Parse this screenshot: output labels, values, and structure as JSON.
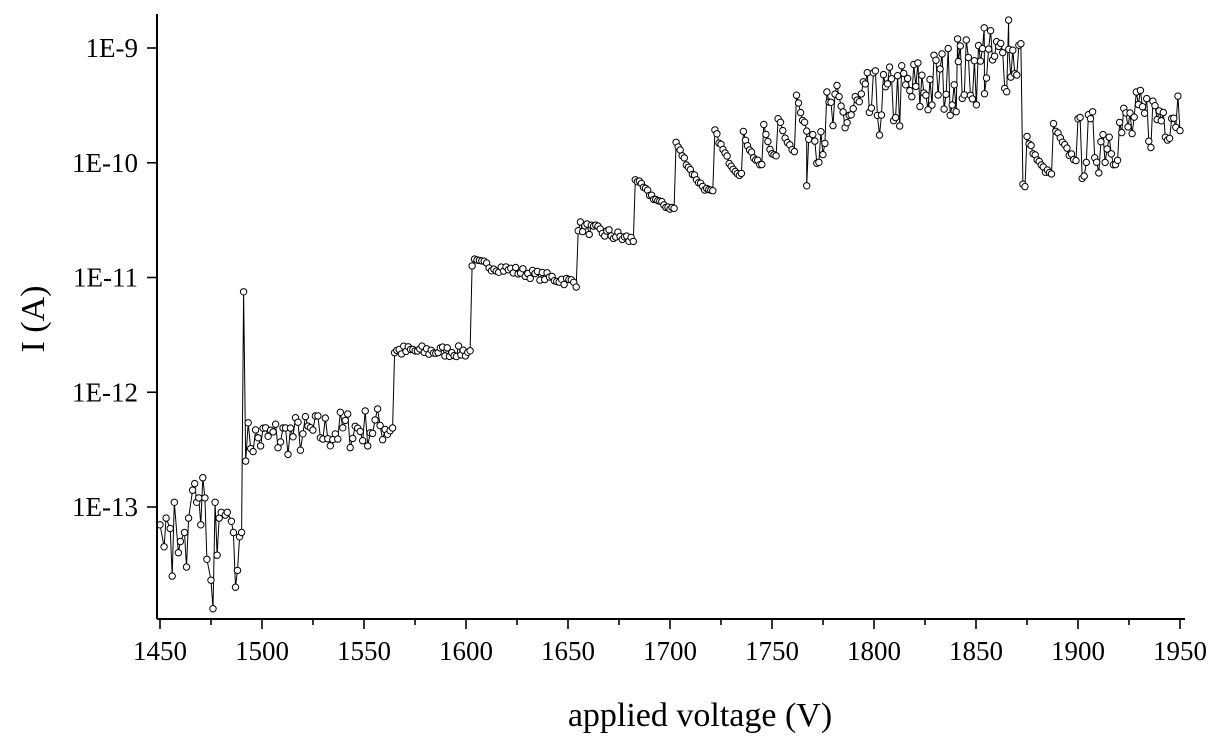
{
  "chart_data": {
    "type": "scatter",
    "title": "",
    "xlabel": "applied voltage (V)",
    "ylabel": "I (A)",
    "xlim": [
      1450,
      1950
    ],
    "ylim": [
      5e-14,
      2e-09
    ],
    "yscale": "log",
    "grid": false,
    "legend": "none",
    "marker": "open-circle",
    "connected": true,
    "x_ticks": [
      1450,
      1500,
      1550,
      1600,
      1650,
      1700,
      1750,
      1800,
      1850,
      1900,
      1950
    ],
    "x_tick_labels": [
      "1450",
      "1500",
      "1550",
      "1600",
      "1650",
      "1700",
      "1750",
      "1800",
      "1850",
      "1900",
      "1950"
    ],
    "y_ticks": [
      1e-13,
      1e-12,
      1e-11,
      1e-10,
      1e-09
    ],
    "y_tick_labels": [
      "1E-13",
      "1E-12",
      "1E-11",
      "1E-10",
      "1E-9"
    ],
    "segments": [
      {
        "note": "noisy",
        "x_start": 1450,
        "x_end": 1490,
        "points": [
          [
            1450,
            7e-14
          ],
          [
            1452,
            4.5e-14
          ],
          [
            1453,
            8e-14
          ],
          [
            1455,
            6.5e-14
          ],
          [
            1456,
            2.5e-14
          ],
          [
            1457,
            1.1e-13
          ],
          [
            1459,
            4e-14
          ],
          [
            1460,
            5e-14
          ],
          [
            1462,
            6e-14
          ],
          [
            1463,
            3e-14
          ],
          [
            1464,
            8e-14
          ],
          [
            1466,
            1.4e-13
          ],
          [
            1467,
            1.6e-13
          ],
          [
            1468,
            1.1e-13
          ],
          [
            1469,
            1.2e-13
          ],
          [
            1470,
            7e-14
          ],
          [
            1471,
            1.8e-13
          ],
          [
            1472,
            1.2e-13
          ],
          [
            1473,
            3.5e-14
          ],
          [
            1475,
            2.3e-14
          ],
          [
            1476,
            1.3e-14
          ],
          [
            1477,
            1.1e-13
          ],
          [
            1478,
            3.8e-14
          ],
          [
            1479,
            8e-14
          ],
          [
            1480,
            9e-14
          ],
          [
            1482,
            8.5e-14
          ],
          [
            1483,
            9e-14
          ],
          [
            1485,
            7.5e-14
          ],
          [
            1486,
            6e-14
          ],
          [
            1487,
            2e-14
          ],
          [
            1488,
            2.8e-14
          ],
          [
            1489,
            5.5e-14
          ],
          [
            1490,
            6e-14
          ]
        ]
      },
      {
        "note": "spike",
        "x_start": 1491,
        "x_end": 1491,
        "points": [
          [
            1491,
            7.5e-12
          ]
        ]
      },
      {
        "x_start": 1492,
        "x_end": 1564,
        "y_start": 3.8e-13,
        "y_end": 5.2e-13,
        "n": 60,
        "noise": 0.18,
        "shape": "flat"
      },
      {
        "x_start": 1565,
        "x_end": 1602,
        "y_start": 2.3e-12,
        "y_end": 2.25e-12,
        "n": 34,
        "noise": 0.05,
        "shape": "flat"
      },
      {
        "x_start": 1603,
        "x_end": 1654,
        "y_start": 1.35e-11,
        "y_end": 9e-12,
        "n": 44,
        "noise": 0.04,
        "shape": "flat"
      },
      {
        "x_start": 1655,
        "x_end": 1682,
        "y_start": 2.8e-11,
        "y_end": 2.1e-11,
        "n": 26,
        "noise": 0.05,
        "shape": "flat"
      },
      {
        "x_start": 1683,
        "x_end": 1702,
        "y_start": 7.3e-11,
        "y_end": 4e-11,
        "n": 20,
        "noise": 0.02,
        "shape": "decay"
      },
      {
        "x_start": 1703,
        "x_end": 1721,
        "y_start": 1.5e-10,
        "y_end": 5.5e-11,
        "n": 19,
        "noise": 0.02,
        "shape": "decay"
      },
      {
        "x_start": 1722,
        "x_end": 1735,
        "y_start": 1.9e-10,
        "y_end": 8e-11,
        "n": 14,
        "noise": 0.02,
        "shape": "decay"
      },
      {
        "x_start": 1736,
        "x_end": 1745,
        "y_start": 1.8e-10,
        "y_end": 9.5e-11,
        "n": 10,
        "noise": 0.02,
        "shape": "decay"
      },
      {
        "x_start": 1746,
        "x_end": 1752,
        "y_start": 2.1e-10,
        "y_end": 1.1e-10,
        "n": 7,
        "noise": 0.02,
        "shape": "decay"
      },
      {
        "x_start": 1753,
        "x_end": 1761,
        "y_start": 2.5e-10,
        "y_end": 1.3e-10,
        "n": 8,
        "noise": 0.02,
        "shape": "decay"
      },
      {
        "x_start": 1762,
        "x_end": 1767,
        "y_start": 4e-10,
        "y_end": 2e-10,
        "n": 6,
        "noise": 0.03,
        "shape": "decay"
      },
      {
        "x_start": 1768,
        "x_end": 1768,
        "points": [
          [
            1767,
            6.3e-11
          ],
          [
            1768,
            1.6e-10
          ]
        ]
      },
      {
        "x_start": 1770,
        "x_end": 1872,
        "y_start": 2e-10,
        "y_end": 9e-10,
        "n": 104,
        "noise": 0.32,
        "shape": "flat"
      },
      {
        "note": "spike",
        "x_start": 1866,
        "x_end": 1866,
        "points": [
          [
            1866,
            1.75e-09
          ],
          [
            1854,
            1.5e-09
          ],
          [
            1841,
            1.2e-09
          ]
        ]
      },
      {
        "note": "drop",
        "x_start": 1873,
        "x_end": 1874,
        "points": [
          [
            1873,
            6.5e-11
          ],
          [
            1874,
            6.2e-11
          ]
        ]
      },
      {
        "x_start": 1875,
        "x_end": 1886,
        "y_start": 1.65e-10,
        "y_end": 8.2e-11,
        "n": 12,
        "noise": 0.02,
        "shape": "decay"
      },
      {
        "x_start": 1887,
        "x_end": 1887,
        "points": [
          [
            1887,
            8e-11
          ]
        ]
      },
      {
        "x_start": 1888,
        "x_end": 1899,
        "y_start": 2.1e-10,
        "y_end": 1.1e-10,
        "n": 11,
        "noise": 0.03,
        "shape": "decay"
      },
      {
        "x_start": 1900,
        "x_end": 1950,
        "y_start": 1.3e-10,
        "y_end": 3.2e-10,
        "n": 50,
        "noise": 0.3,
        "shape": "flat"
      }
    ]
  }
}
